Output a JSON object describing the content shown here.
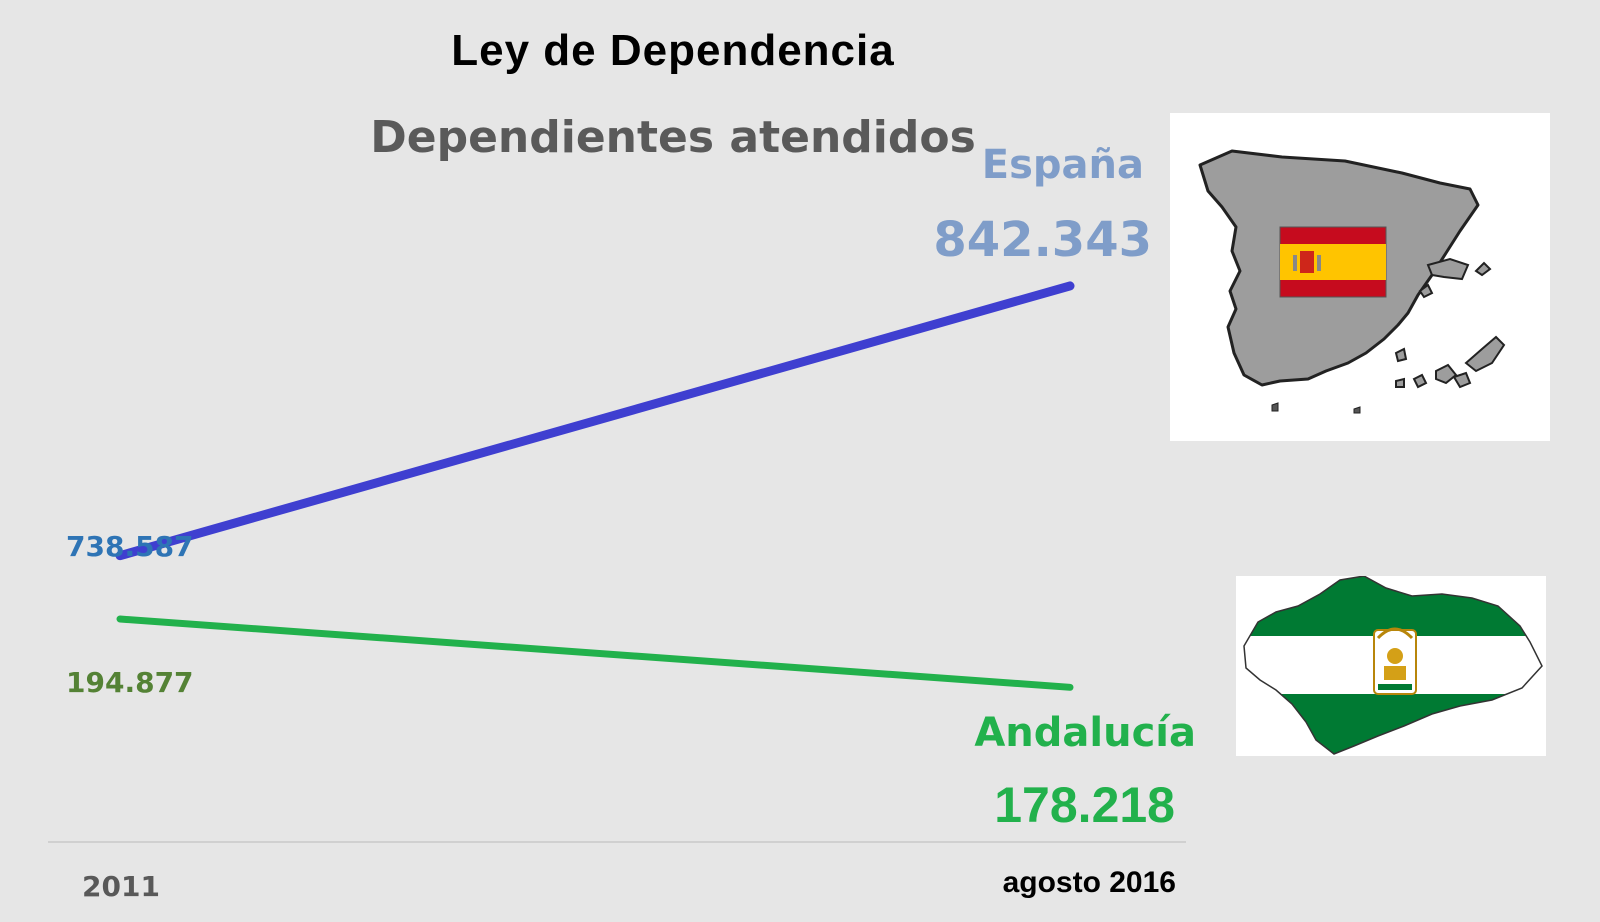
{
  "header": {
    "title": "Ley de Dependencia",
    "subtitle": "Dependientes atendidos"
  },
  "chart_data": {
    "type": "line",
    "title": "Ley de Dependencia",
    "subtitle": "Dependientes atendidos",
    "categories": [
      "2011",
      "agosto 2016"
    ],
    "series": [
      {
        "name": "España",
        "values": [
          738587,
          842343
        ],
        "labels": [
          "738.587",
          "842.343"
        ],
        "color": "#3f3fd0"
      },
      {
        "name": "Andalucía",
        "values": [
          194877,
          178218
        ],
        "labels": [
          "194.877",
          "178.218"
        ],
        "color": "#22b14c"
      }
    ],
    "grid": false
  },
  "colors": {
    "background": "#e6e6e6",
    "espana_label": "#7f9dc9",
    "andalucia_label": "#22b14c",
    "spain_map": "#9d9d9d",
    "spain_flag_red": "#c60b1e",
    "spain_flag_yellow": "#ffc400",
    "andalucia_green": "#007a33"
  },
  "images": {
    "spain_map_icon": "spain-map-with-flag",
    "andalucia_map_icon": "andalucia-map-with-flag"
  }
}
